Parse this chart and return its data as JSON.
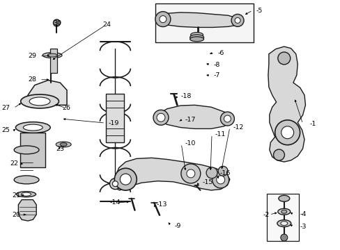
{
  "bg_color": "#ffffff",
  "line_color": "#1a1a1a",
  "figsize": [
    4.89,
    3.6
  ],
  "dpi": 100,
  "labels": {
    "1": [
      0.918,
      0.495,
      "-1"
    ],
    "2": [
      0.792,
      0.862,
      "-2"
    ],
    "3": [
      0.9,
      0.908,
      "-3"
    ],
    "4": [
      0.9,
      0.858,
      "-4"
    ],
    "5": [
      0.762,
      0.048,
      "-5"
    ],
    "6": [
      0.638,
      0.205,
      "-6"
    ],
    "7": [
      0.63,
      0.302,
      "-7"
    ],
    "8": [
      0.635,
      0.255,
      "-8"
    ],
    "9": [
      0.522,
      0.905,
      "-9"
    ],
    "10": [
      0.548,
      0.572,
      "-10"
    ],
    "11": [
      0.632,
      0.535,
      "-11"
    ],
    "12": [
      0.69,
      0.508,
      "-12"
    ],
    "13": [
      0.462,
      0.818,
      "-13"
    ],
    "14": [
      0.328,
      0.812,
      "-14"
    ],
    "15": [
      0.598,
      0.728,
      "-15"
    ],
    "16": [
      0.645,
      0.692,
      "-16"
    ],
    "17": [
      0.548,
      0.478,
      "-17"
    ],
    "18": [
      0.538,
      0.382,
      "-18"
    ],
    "19": [
      0.322,
      0.492,
      "-19"
    ],
    "20": [
      0.062,
      0.858,
      "-20"
    ],
    "21": [
      0.062,
      0.782,
      "-21"
    ],
    "22": [
      0.062,
      0.658,
      "-22"
    ],
    "23": [
      0.165,
      0.595,
      "-23"
    ],
    "24": [
      0.302,
      0.098,
      "-24"
    ],
    "25": [
      0.032,
      0.522,
      "-25"
    ],
    "26": [
      0.188,
      0.432,
      "-26"
    ],
    "27": [
      0.032,
      0.432,
      "-27"
    ],
    "28": [
      0.112,
      0.318,
      "-28"
    ],
    "29": [
      0.112,
      0.222,
      "-29"
    ],
    "30": [
      0.158,
      0.098,
      "-30"
    ]
  }
}
